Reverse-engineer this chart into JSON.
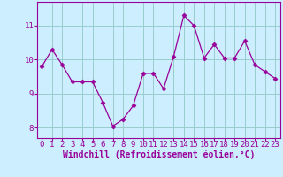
{
  "x": [
    0,
    1,
    2,
    3,
    4,
    5,
    6,
    7,
    8,
    9,
    10,
    11,
    12,
    13,
    14,
    15,
    16,
    17,
    18,
    19,
    20,
    21,
    22,
    23
  ],
  "y": [
    9.8,
    10.3,
    9.85,
    9.35,
    9.35,
    9.35,
    8.75,
    8.05,
    8.25,
    8.65,
    9.6,
    9.6,
    9.15,
    10.1,
    11.3,
    11.0,
    10.05,
    10.45,
    10.05,
    10.05,
    10.55,
    9.85,
    9.65,
    9.45
  ],
  "line_color": "#990099",
  "marker": "D",
  "marker_size": 2.5,
  "bg_color": "#cceeff",
  "grid_color": "#99cccc",
  "xlabel": "Windchill (Refroidissement éolien,°C)",
  "xlabel_color": "#990099",
  "tick_color": "#990099",
  "ylim": [
    7.7,
    11.7
  ],
  "yticks": [
    8,
    9,
    10,
    11
  ],
  "xlim": [
    -0.5,
    23.5
  ],
  "xticks": [
    0,
    1,
    2,
    3,
    4,
    5,
    6,
    7,
    8,
    9,
    10,
    11,
    12,
    13,
    14,
    15,
    16,
    17,
    18,
    19,
    20,
    21,
    22,
    23
  ],
  "spine_color": "#990099",
  "tick_fontsize": 6.5,
  "xlabel_fontsize": 7
}
